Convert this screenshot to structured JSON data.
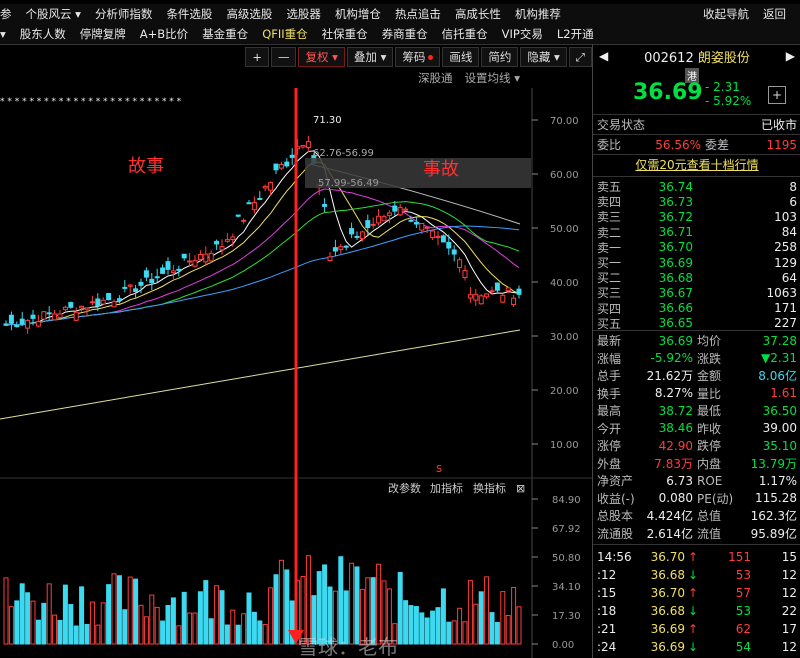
{
  "menu1": [
    "参",
    "个股风云 ▾",
    "分析师指数",
    "条件选股",
    "高级选股",
    "选股器",
    "机构增仓",
    "热点追击",
    "高成长性",
    "机构推荐",
    "收起导航",
    "返回"
  ],
  "menu2": [
    "▾",
    "股东人数",
    "停牌复牌",
    "A+B比价",
    "基金重仓",
    "QFII重仓",
    "社保重仓",
    "券商重仓",
    "信托重仓",
    "VIP交易",
    "L2开通"
  ],
  "toolbar": {
    "plus": "+",
    "minus": "—",
    "fq": "复权 ▾",
    "add": "叠加 ▾",
    "chip": "筹码",
    "draw": "画线",
    "simple": "简约",
    "hide": "隐藏 ▾",
    "expand": "⤢"
  },
  "sub": {
    "depth": "深股通",
    "ma": "设置均线 ▾"
  },
  "annot": {
    "story": "故事",
    "accident": "事故",
    "s_mark": "s"
  },
  "price_chart": {
    "y_ticks": [
      "70.00",
      "60.00",
      "50.00",
      "40.00",
      "30.00",
      "20.00",
      "10.00"
    ],
    "high_label": "71.30",
    "range1": "62.76-56.99",
    "range2": "57.99-56.49",
    "star_row": "* * *    * * *   * *    * * * *    * *    *     * * *  * * *   * *  * *"
  },
  "vol_panel": {
    "btn_params": "改参数",
    "btn_add": "加指标",
    "btn_swap": "换指标",
    "btn_close": "⊠",
    "y_ticks": [
      "84.90",
      "67.92",
      "50.80",
      "34.10",
      "17.30",
      "0.00"
    ]
  },
  "stock": {
    "code": "002612",
    "name": "朗姿股份",
    "tag": "港",
    "price": "36.69",
    "change": "- 2.31",
    "pct": "- 5.92%",
    "plus_btn": "+",
    "status_label": "交易状态",
    "status_value": "已收市",
    "weibi_label": "委比",
    "weibi_value": "56.56%",
    "weicha_label": "委差",
    "weicha_value": "1195",
    "promo": "仅需20元查看十档行情"
  },
  "sell": [
    {
      "label": "卖五",
      "price": "36.74",
      "vol": "8"
    },
    {
      "label": "卖四",
      "price": "36.73",
      "vol": "6"
    },
    {
      "label": "卖三",
      "price": "36.72",
      "vol": "103"
    },
    {
      "label": "卖二",
      "price": "36.71",
      "vol": "84"
    },
    {
      "label": "卖一",
      "price": "36.70",
      "vol": "258"
    }
  ],
  "buy": [
    {
      "label": "买一",
      "price": "36.69",
      "vol": "129"
    },
    {
      "label": "买二",
      "price": "36.68",
      "vol": "64"
    },
    {
      "label": "买三",
      "price": "36.67",
      "vol": "1063"
    },
    {
      "label": "买四",
      "price": "36.66",
      "vol": "171"
    },
    {
      "label": "买五",
      "price": "36.65",
      "vol": "227"
    }
  ],
  "stats": [
    {
      "l1": "最新",
      "v1": "36.69",
      "c1": "green",
      "l2": "均价",
      "v2": "37.28",
      "c2": "green"
    },
    {
      "l1": "涨幅",
      "v1": "-5.92%",
      "c1": "green",
      "l2": "涨跌",
      "v2": "▼2.31",
      "c2": "green"
    },
    {
      "l1": "总手",
      "v1": "21.62万",
      "c1": "white",
      "l2": "金额",
      "v2": "8.06亿",
      "c2": "cyan"
    },
    {
      "l1": "换手",
      "v1": "8.27%",
      "c1": "white",
      "l2": "量比",
      "v2": "1.61",
      "c2": "red"
    },
    {
      "l1": "最高",
      "v1": "38.72",
      "c1": "green",
      "l2": "最低",
      "v2": "36.50",
      "c2": "green"
    },
    {
      "l1": "今开",
      "v1": "38.46",
      "c1": "green",
      "l2": "昨收",
      "v2": "39.00",
      "c2": "white"
    },
    {
      "l1": "涨停",
      "v1": "42.90",
      "c1": "red",
      "l2": "跌停",
      "v2": "35.10",
      "c2": "green"
    },
    {
      "l1": "外盘",
      "v1": "7.83万",
      "c1": "red",
      "l2": "内盘",
      "v2": "13.79万",
      "c2": "green"
    },
    {
      "l1": "净资产",
      "v1": "6.73",
      "c1": "white",
      "l2": "ROE",
      "v2": "1.17%",
      "c2": "white"
    },
    {
      "l1": "收益(-)",
      "v1": "0.080",
      "c1": "white",
      "l2": "PE(动)",
      "v2": "115.28",
      "c2": "white"
    },
    {
      "l1": "总股本",
      "v1": "4.424亿",
      "c1": "white",
      "l2": "总值",
      "v2": "162.3亿",
      "c2": "white"
    },
    {
      "l1": "流通股",
      "v1": "2.614亿",
      "c1": "white",
      "l2": "流值",
      "v2": "95.89亿",
      "c2": "white"
    }
  ],
  "ticks": [
    {
      "t": "14:56",
      "p": "36.70",
      "dir": "↑",
      "dc": "red",
      "v": "151",
      "vc": "red",
      "n": "15"
    },
    {
      "t": ":12",
      "p": "36.68",
      "dir": "↓",
      "dc": "green",
      "v": "53",
      "vc": "red",
      "n": "12"
    },
    {
      "t": ":15",
      "p": "36.70",
      "dir": "↑",
      "dc": "red",
      "v": "57",
      "vc": "red",
      "n": "12"
    },
    {
      "t": ":18",
      "p": "36.68",
      "dir": "↓",
      "dc": "green",
      "v": "53",
      "vc": "green",
      "n": "22"
    },
    {
      "t": ":21",
      "p": "36.69",
      "dir": "↑",
      "dc": "red",
      "v": "62",
      "vc": "red",
      "n": "17"
    },
    {
      "t": ":24",
      "p": "36.69",
      "dir": "↓",
      "dc": "green",
      "v": "54",
      "vc": "green",
      "n": "12"
    }
  ],
  "watermark": "雪球：老布"
}
